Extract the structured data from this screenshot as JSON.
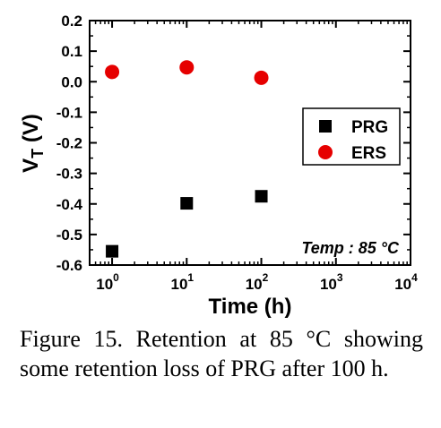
{
  "chart_data": {
    "type": "scatter",
    "title": "",
    "xlabel": "Time (h)",
    "ylabel": "V_T (V)",
    "xscale": "log",
    "xlim": [
      0.5,
      10000
    ],
    "ylim": [
      -0.6,
      0.2
    ],
    "x_ticks": [
      {
        "base": "10",
        "exp": "0"
      },
      {
        "base": "10",
        "exp": "1"
      },
      {
        "base": "10",
        "exp": "2"
      },
      {
        "base": "10",
        "exp": "3"
      },
      {
        "base": "10",
        "exp": "4"
      }
    ],
    "y_ticks": [
      "0.2",
      "0.1",
      "0.0",
      "-0.1",
      "-0.2",
      "-0.3",
      "-0.4",
      "-0.5",
      "-0.6"
    ],
    "series": [
      {
        "name": "PRG",
        "marker": "square",
        "color": "#000000",
        "x": [
          1,
          10,
          100
        ],
        "y": [
          -0.555,
          -0.398,
          -0.375
        ]
      },
      {
        "name": "ERS",
        "marker": "circle",
        "color": "#e60000",
        "x": [
          1,
          10,
          100
        ],
        "y": [
          0.032,
          0.047,
          0.013
        ]
      }
    ],
    "legend_position": "right",
    "annotation": "Temp : 85 °C",
    "grid": false
  },
  "caption": "Figure 15. Retention at 85 °C showing some retention loss of PRG after 100 h."
}
